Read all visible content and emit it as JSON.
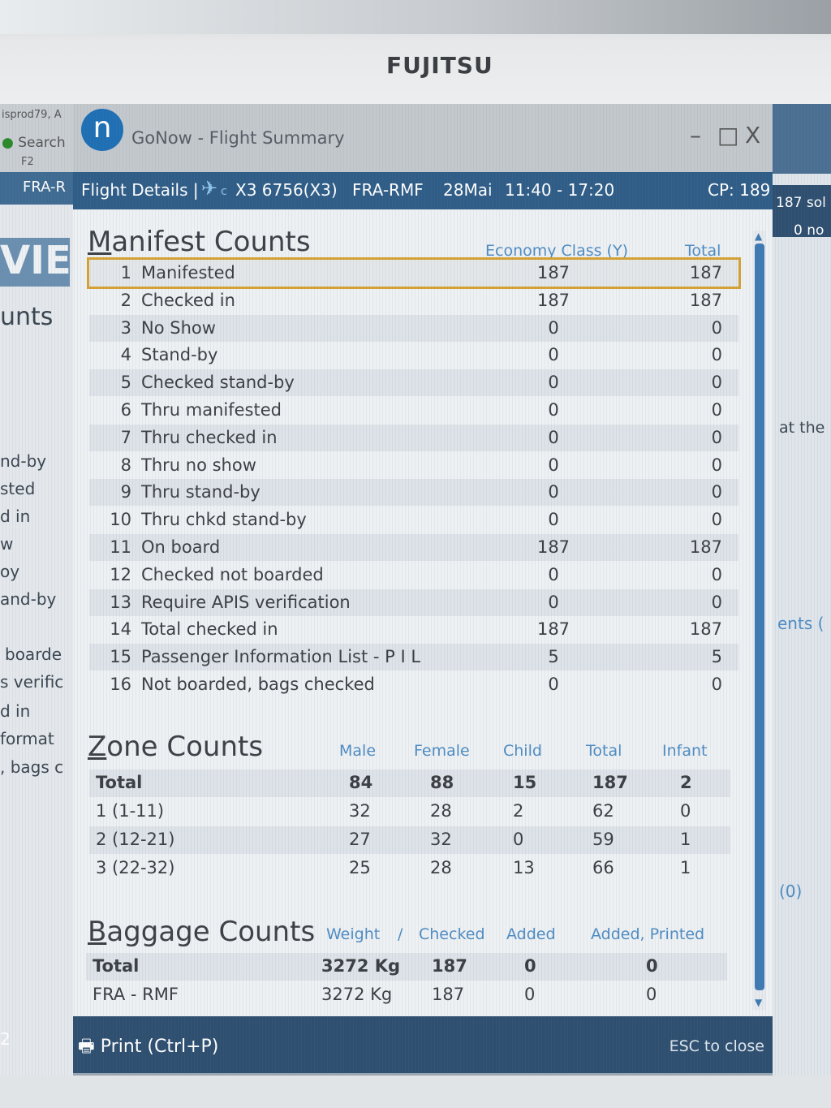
{
  "monitor": {
    "brand": "FUJITSU"
  },
  "background_left": {
    "top_lines": [
      "isprod79, A",
      "Search",
      "F2"
    ],
    "tab": "FRA-R",
    "big": "VIE",
    "heading": "unts",
    "lines": [
      "nd-by",
      "sted",
      "d in",
      "w",
      "oy",
      "and-by",
      "boarde",
      "s verific",
      "d in",
      "format",
      ", bags c"
    ],
    "bottom": "2"
  },
  "background_right": {
    "lines": [
      "187 sol",
      "0 no",
      "at the",
      "ents (",
      "(0)"
    ]
  },
  "window": {
    "logo": "n",
    "title": "GoNow - Flight Summary",
    "controls": {
      "minimize": "–",
      "maximize": "□",
      "close": "X"
    }
  },
  "header": {
    "section": "Flight Details |",
    "carrier_sub": "c",
    "flight": "X3 6756(X3)",
    "route": "FRA-RMF",
    "date": "28Mai",
    "time": "11:40 - 17:20",
    "cp": "CP: 189"
  },
  "manifest": {
    "title_first": "M",
    "title_rest": "anifest Counts",
    "columns": [
      "Economy Class (Y)",
      "Total"
    ],
    "rows": [
      {
        "n": "1",
        "label": "Manifested",
        "y": "187",
        "total": "187"
      },
      {
        "n": "2",
        "label": "Checked in",
        "y": "187",
        "total": "187"
      },
      {
        "n": "3",
        "label": "No Show",
        "y": "0",
        "total": "0"
      },
      {
        "n": "4",
        "label": "Stand-by",
        "y": "0",
        "total": "0"
      },
      {
        "n": "5",
        "label": "Checked stand-by",
        "y": "0",
        "total": "0"
      },
      {
        "n": "6",
        "label": "Thru manifested",
        "y": "0",
        "total": "0"
      },
      {
        "n": "7",
        "label": "Thru checked in",
        "y": "0",
        "total": "0"
      },
      {
        "n": "8",
        "label": "Thru no show",
        "y": "0",
        "total": "0"
      },
      {
        "n": "9",
        "label": "Thru stand-by",
        "y": "0",
        "total": "0"
      },
      {
        "n": "10",
        "label": "Thru chkd stand-by",
        "y": "0",
        "total": "0"
      },
      {
        "n": "11",
        "label": "On board",
        "y": "187",
        "total": "187"
      },
      {
        "n": "12",
        "label": "Checked not boarded",
        "y": "0",
        "total": "0"
      },
      {
        "n": "13",
        "label": "Require APIS verification",
        "y": "0",
        "total": "0"
      },
      {
        "n": "14",
        "label": "Total checked in",
        "y": "187",
        "total": "187"
      },
      {
        "n": "15",
        "label": "Passenger Information List - P I L",
        "y": "5",
        "total": "5"
      },
      {
        "n": "16",
        "label": "Not boarded, bags checked",
        "y": "0",
        "total": "0"
      }
    ]
  },
  "zones": {
    "title_first": "Z",
    "title_rest": "one Counts",
    "columns": [
      "Male",
      "Female",
      "Child",
      "Total",
      "Infant"
    ],
    "rows": [
      {
        "label": "Total",
        "male": "84",
        "female": "88",
        "child": "15",
        "total": "187",
        "infant": "2"
      },
      {
        "label": "1 (1-11)",
        "male": "32",
        "female": "28",
        "child": "2",
        "total": "62",
        "infant": "0"
      },
      {
        "label": "2 (12-21)",
        "male": "27",
        "female": "32",
        "child": "0",
        "total": "59",
        "infant": "1"
      },
      {
        "label": "3 (22-32)",
        "male": "25",
        "female": "28",
        "child": "13",
        "total": "66",
        "infant": "1"
      }
    ]
  },
  "baggage": {
    "title_first": "B",
    "title_rest": "aggage Counts",
    "columns": [
      "Weight",
      "/",
      "Checked",
      "Added",
      "Added, Printed"
    ],
    "rows": [
      {
        "label": "Total",
        "weight": "3272 Kg",
        "checked": "187",
        "added": "0",
        "added_printed": "0"
      },
      {
        "label": "FRA - RMF",
        "weight": "3272 Kg",
        "checked": "187",
        "added": "0",
        "added_printed": "0"
      }
    ]
  },
  "footer": {
    "print_label": "Print (Ctrl+P)",
    "esc_label": "ESC to close"
  },
  "colors": {
    "header_bg": "#2f5d87",
    "column_header": "#4e8cc4",
    "selection": "#d6a233"
  }
}
